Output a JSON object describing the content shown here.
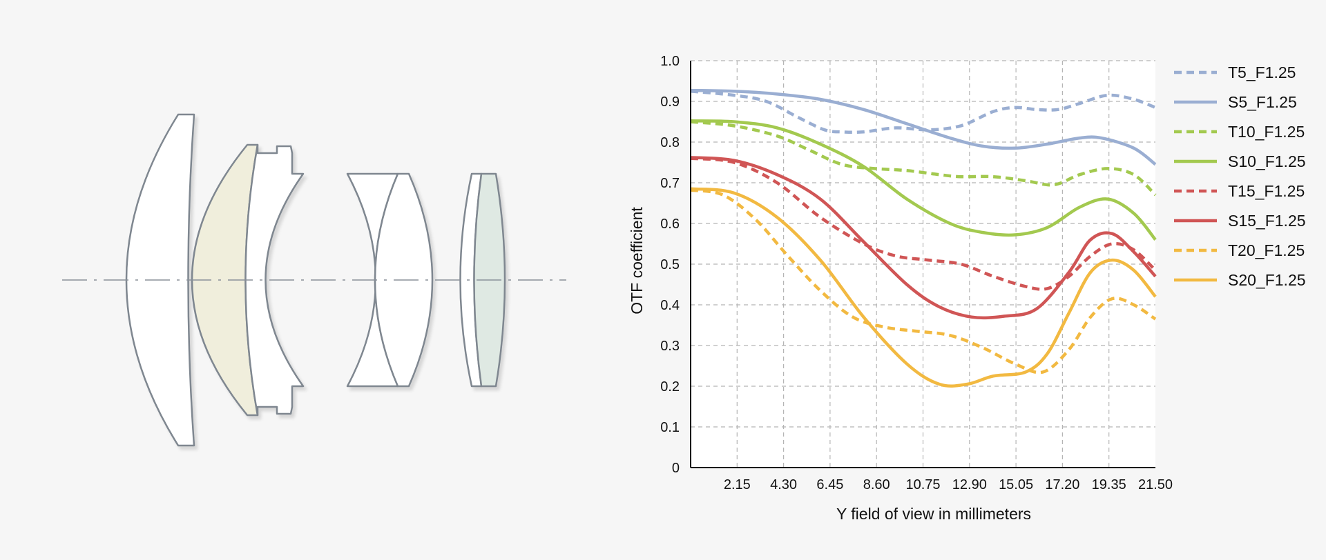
{
  "chart_data": {
    "type": "line",
    "xlabel": "Y field of view in millimeters",
    "ylabel": "OTF coefficient",
    "xlim": [
      0,
      21.5
    ],
    "ylim": [
      0,
      1.0
    ],
    "x_ticks": [
      "2.15",
      "4.30",
      "6.45",
      "8.60",
      "10.75",
      "12.90",
      "15.05",
      "17.20",
      "19.35",
      "21.50"
    ],
    "y_ticks": [
      "0",
      "0.1",
      "0.2",
      "0.3",
      "0.4",
      "0.5",
      "0.6",
      "0.7",
      "0.8",
      "0.9",
      "1.0"
    ],
    "grid": true,
    "legend_position": "right",
    "series": [
      {
        "name": "T5_F1.25",
        "color": "#9aaed2",
        "style": "dashed",
        "points": [
          [
            0,
            0.925
          ],
          [
            2,
            0.915
          ],
          [
            3.5,
            0.9
          ],
          [
            5,
            0.86
          ],
          [
            6.2,
            0.83
          ],
          [
            7,
            0.825
          ],
          [
            8,
            0.825
          ],
          [
            9.5,
            0.835
          ],
          [
            11,
            0.83
          ],
          [
            12.5,
            0.84
          ],
          [
            14,
            0.875
          ],
          [
            15,
            0.885
          ],
          [
            16,
            0.88
          ],
          [
            17,
            0.88
          ],
          [
            18,
            0.895
          ],
          [
            19.3,
            0.915
          ],
          [
            20.5,
            0.905
          ],
          [
            21.5,
            0.885
          ]
        ]
      },
      {
        "name": "S5_F1.25",
        "color": "#9aaed2",
        "style": "solid",
        "points": [
          [
            0,
            0.927
          ],
          [
            2,
            0.925
          ],
          [
            4,
            0.918
          ],
          [
            6,
            0.905
          ],
          [
            8,
            0.88
          ],
          [
            10,
            0.845
          ],
          [
            12,
            0.81
          ],
          [
            13.5,
            0.79
          ],
          [
            15,
            0.785
          ],
          [
            16.5,
            0.795
          ],
          [
            18,
            0.81
          ],
          [
            19,
            0.81
          ],
          [
            20.5,
            0.785
          ],
          [
            21.5,
            0.745
          ]
        ]
      },
      {
        "name": "T10_F1.25",
        "color": "#a3c94f",
        "style": "dashed",
        "points": [
          [
            0,
            0.85
          ],
          [
            2,
            0.84
          ],
          [
            4,
            0.815
          ],
          [
            5.5,
            0.78
          ],
          [
            7,
            0.745
          ],
          [
            8.5,
            0.735
          ],
          [
            10,
            0.73
          ],
          [
            11.5,
            0.72
          ],
          [
            12.5,
            0.715
          ],
          [
            14,
            0.715
          ],
          [
            15.5,
            0.705
          ],
          [
            16.8,
            0.695
          ],
          [
            18,
            0.72
          ],
          [
            19.3,
            0.735
          ],
          [
            20.5,
            0.72
          ],
          [
            21.5,
            0.67
          ]
        ]
      },
      {
        "name": "S10_F1.25",
        "color": "#a3c94f",
        "style": "solid",
        "points": [
          [
            0,
            0.852
          ],
          [
            2,
            0.85
          ],
          [
            4,
            0.835
          ],
          [
            6,
            0.795
          ],
          [
            8,
            0.74
          ],
          [
            10,
            0.66
          ],
          [
            12,
            0.6
          ],
          [
            13.5,
            0.578
          ],
          [
            15,
            0.572
          ],
          [
            16.5,
            0.59
          ],
          [
            18,
            0.64
          ],
          [
            19.3,
            0.66
          ],
          [
            20.5,
            0.625
          ],
          [
            21.5,
            0.56
          ]
        ]
      },
      {
        "name": "T15_F1.25",
        "color": "#d05555",
        "style": "dashed",
        "points": [
          [
            0,
            0.76
          ],
          [
            2,
            0.75
          ],
          [
            4,
            0.7
          ],
          [
            6,
            0.615
          ],
          [
            8,
            0.55
          ],
          [
            9.5,
            0.52
          ],
          [
            11,
            0.51
          ],
          [
            12.5,
            0.5
          ],
          [
            14,
            0.47
          ],
          [
            15.5,
            0.445
          ],
          [
            16.5,
            0.44
          ],
          [
            17.5,
            0.47
          ],
          [
            18.5,
            0.52
          ],
          [
            19.5,
            0.55
          ],
          [
            20.5,
            0.535
          ],
          [
            21.5,
            0.485
          ]
        ]
      },
      {
        "name": "S15_F1.25",
        "color": "#d05555",
        "style": "solid",
        "points": [
          [
            0,
            0.762
          ],
          [
            2,
            0.755
          ],
          [
            4,
            0.72
          ],
          [
            6,
            0.66
          ],
          [
            8,
            0.555
          ],
          [
            10,
            0.45
          ],
          [
            11.5,
            0.395
          ],
          [
            13,
            0.37
          ],
          [
            14.5,
            0.372
          ],
          [
            16,
            0.39
          ],
          [
            17.5,
            0.48
          ],
          [
            18.5,
            0.56
          ],
          [
            19.5,
            0.575
          ],
          [
            20.5,
            0.53
          ],
          [
            21.5,
            0.47
          ]
        ]
      },
      {
        "name": "T20_F1.25",
        "color": "#f2b941",
        "style": "dashed",
        "points": [
          [
            0,
            0.682
          ],
          [
            1.5,
            0.67
          ],
          [
            3,
            0.61
          ],
          [
            4.5,
            0.52
          ],
          [
            6,
            0.435
          ],
          [
            7.5,
            0.37
          ],
          [
            9,
            0.345
          ],
          [
            10.5,
            0.335
          ],
          [
            12,
            0.325
          ],
          [
            13.5,
            0.295
          ],
          [
            15,
            0.255
          ],
          [
            16.3,
            0.235
          ],
          [
            17.5,
            0.29
          ],
          [
            18.5,
            0.37
          ],
          [
            19.5,
            0.415
          ],
          [
            20.5,
            0.4
          ],
          [
            21.5,
            0.365
          ]
        ]
      },
      {
        "name": "S20_F1.25",
        "color": "#f2b941",
        "style": "solid",
        "points": [
          [
            0,
            0.685
          ],
          [
            2,
            0.675
          ],
          [
            4,
            0.615
          ],
          [
            6,
            0.51
          ],
          [
            8,
            0.37
          ],
          [
            10,
            0.255
          ],
          [
            11.5,
            0.205
          ],
          [
            12.8,
            0.205
          ],
          [
            14,
            0.225
          ],
          [
            15.5,
            0.235
          ],
          [
            16.5,
            0.28
          ],
          [
            17.5,
            0.38
          ],
          [
            18.5,
            0.48
          ],
          [
            19.5,
            0.51
          ],
          [
            20.5,
            0.485
          ],
          [
            21.5,
            0.42
          ]
        ]
      }
    ]
  },
  "diagram": {
    "elements": [
      "front-meniscus",
      "cemented-element",
      "rear-meniscus",
      "biconcave-element",
      "biconvex-element",
      "rear-group-element",
      "rear-group-cemented-element"
    ],
    "colors": {
      "outline": "#7f8790",
      "glass": "#ffffff",
      "tinted_glass": "#f0eedc",
      "mint_glass": "#dfe9e3",
      "axis": "#8a9199"
    }
  }
}
